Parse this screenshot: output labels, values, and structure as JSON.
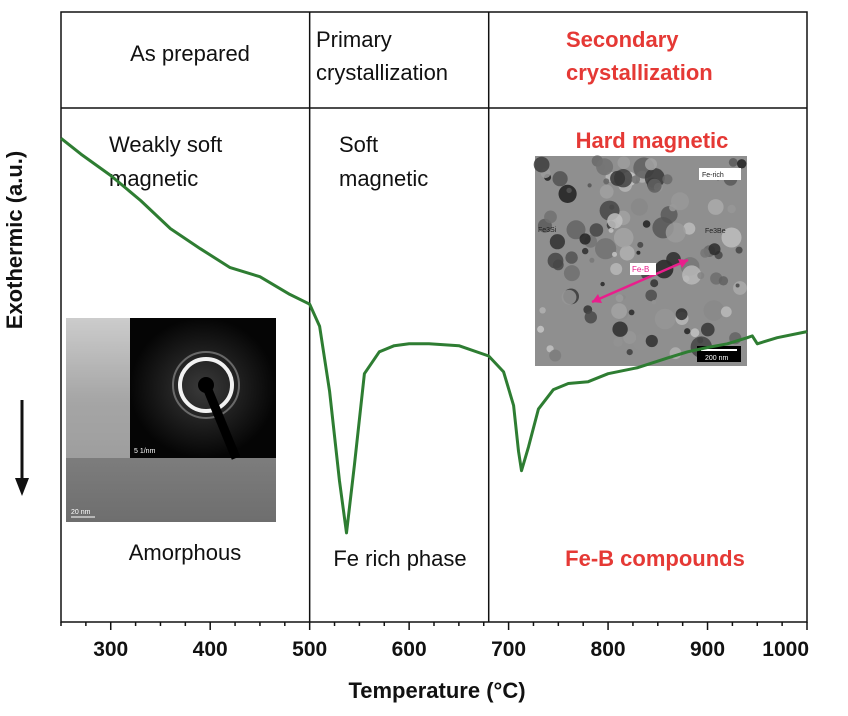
{
  "chart_data": {
    "type": "line",
    "xlabel": "Temperature (°C)",
    "ylabel": "Exothermic (a.u.)",
    "xlim": [
      250,
      1000
    ],
    "ylim": [
      0,
      100
    ],
    "x_ticks": [
      "300",
      "400",
      "500",
      "600",
      "700",
      "800",
      "900",
      "1000"
    ],
    "x_tick_values": [
      300,
      400,
      500,
      600,
      700,
      800,
      900,
      1000
    ],
    "grid": false,
    "series": [
      {
        "color": "#2e7d32",
        "x": [
          250,
          270,
          300,
          330,
          360,
          390,
          420,
          450,
          480,
          500,
          510,
          520,
          530,
          537,
          545,
          555,
          570,
          585,
          600,
          620,
          650,
          680,
          695,
          705,
          710,
          713,
          720,
          730,
          745,
          760,
          780,
          800,
          830,
          860,
          880,
          900,
          920,
          940,
          945,
          950,
          970,
          1000
        ],
        "y": [
          79.3,
          76.7,
          73.2,
          69.1,
          64.5,
          61.2,
          58.1,
          56.6,
          53.7,
          52.1,
          48.5,
          37.8,
          23.1,
          14.6,
          25.7,
          40.7,
          44.3,
          45.3,
          45.6,
          45.6,
          45.3,
          43.6,
          41.0,
          35.5,
          28.0,
          24.8,
          28.7,
          34.9,
          38.1,
          39.1,
          39.4,
          40.7,
          41.7,
          43.3,
          44.3,
          45.0,
          45.6,
          46.6,
          46.9,
          45.6,
          46.6,
          47.6
        ]
      }
    ],
    "regions": [
      {
        "header": "As prepared",
        "magnetic": [
          "Weakly soft",
          "magnetic"
        ],
        "phase": "Amorphous",
        "color": "#111111"
      },
      {
        "header": [
          "Primary",
          "crystallization"
        ],
        "magnetic": [
          "Soft",
          "magnetic"
        ],
        "phase": "Fe rich phase",
        "color": "#111111"
      },
      {
        "header": [
          "Secondary",
          "crystallization"
        ],
        "magnetic": "Hard magnetic",
        "phase": "Fe-B compounds",
        "color": "#e53935"
      }
    ],
    "region_boundaries": [
      500,
      680
    ]
  },
  "insets": {
    "left_scale": "20 nm",
    "left_saed_scale": "5 1/nm",
    "right_scale": "200 nm",
    "right_labels": [
      "Fe-rich",
      "Fe-B",
      "Fe3Si",
      "Fe3Be"
    ]
  }
}
